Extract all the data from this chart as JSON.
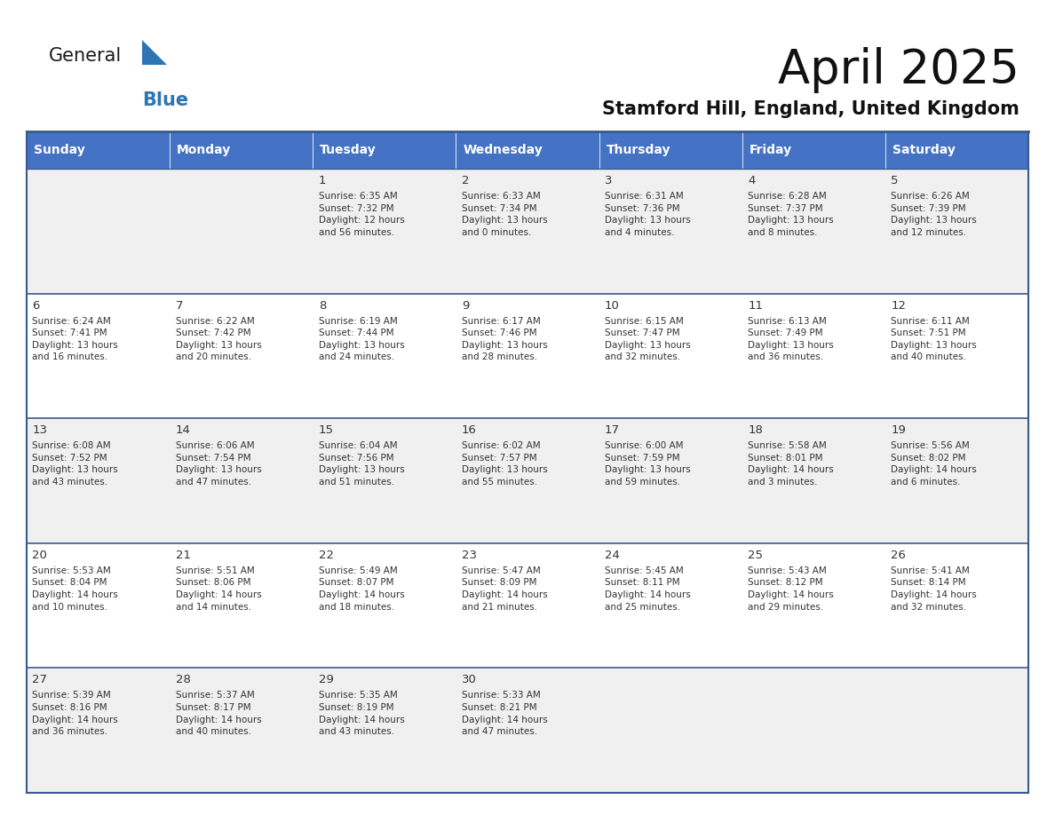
{
  "title": "April 2025",
  "subtitle": "Stamford Hill, England, United Kingdom",
  "header_color": "#4472C4",
  "header_text_color": "#FFFFFF",
  "row_bg_white": "#FFFFFF",
  "row_bg_gray": "#F0F0F0",
  "border_color": "#3a5a8c",
  "text_color": "#333333",
  "logo_black": "#1a1a1a",
  "logo_blue": "#2E75B6",
  "triangle_blue": "#2E75B6",
  "days_of_week": [
    "Sunday",
    "Monday",
    "Tuesday",
    "Wednesday",
    "Thursday",
    "Friday",
    "Saturday"
  ],
  "row_colors": [
    "gray",
    "white",
    "gray",
    "white",
    "gray"
  ],
  "calendar_data": [
    [
      {
        "day": "",
        "info": ""
      },
      {
        "day": "",
        "info": ""
      },
      {
        "day": "1",
        "info": "Sunrise: 6:35 AM\nSunset: 7:32 PM\nDaylight: 12 hours\nand 56 minutes."
      },
      {
        "day": "2",
        "info": "Sunrise: 6:33 AM\nSunset: 7:34 PM\nDaylight: 13 hours\nand 0 minutes."
      },
      {
        "day": "3",
        "info": "Sunrise: 6:31 AM\nSunset: 7:36 PM\nDaylight: 13 hours\nand 4 minutes."
      },
      {
        "day": "4",
        "info": "Sunrise: 6:28 AM\nSunset: 7:37 PM\nDaylight: 13 hours\nand 8 minutes."
      },
      {
        "day": "5",
        "info": "Sunrise: 6:26 AM\nSunset: 7:39 PM\nDaylight: 13 hours\nand 12 minutes."
      }
    ],
    [
      {
        "day": "6",
        "info": "Sunrise: 6:24 AM\nSunset: 7:41 PM\nDaylight: 13 hours\nand 16 minutes."
      },
      {
        "day": "7",
        "info": "Sunrise: 6:22 AM\nSunset: 7:42 PM\nDaylight: 13 hours\nand 20 minutes."
      },
      {
        "day": "8",
        "info": "Sunrise: 6:19 AM\nSunset: 7:44 PM\nDaylight: 13 hours\nand 24 minutes."
      },
      {
        "day": "9",
        "info": "Sunrise: 6:17 AM\nSunset: 7:46 PM\nDaylight: 13 hours\nand 28 minutes."
      },
      {
        "day": "10",
        "info": "Sunrise: 6:15 AM\nSunset: 7:47 PM\nDaylight: 13 hours\nand 32 minutes."
      },
      {
        "day": "11",
        "info": "Sunrise: 6:13 AM\nSunset: 7:49 PM\nDaylight: 13 hours\nand 36 minutes."
      },
      {
        "day": "12",
        "info": "Sunrise: 6:11 AM\nSunset: 7:51 PM\nDaylight: 13 hours\nand 40 minutes."
      }
    ],
    [
      {
        "day": "13",
        "info": "Sunrise: 6:08 AM\nSunset: 7:52 PM\nDaylight: 13 hours\nand 43 minutes."
      },
      {
        "day": "14",
        "info": "Sunrise: 6:06 AM\nSunset: 7:54 PM\nDaylight: 13 hours\nand 47 minutes."
      },
      {
        "day": "15",
        "info": "Sunrise: 6:04 AM\nSunset: 7:56 PM\nDaylight: 13 hours\nand 51 minutes."
      },
      {
        "day": "16",
        "info": "Sunrise: 6:02 AM\nSunset: 7:57 PM\nDaylight: 13 hours\nand 55 minutes."
      },
      {
        "day": "17",
        "info": "Sunrise: 6:00 AM\nSunset: 7:59 PM\nDaylight: 13 hours\nand 59 minutes."
      },
      {
        "day": "18",
        "info": "Sunrise: 5:58 AM\nSunset: 8:01 PM\nDaylight: 14 hours\nand 3 minutes."
      },
      {
        "day": "19",
        "info": "Sunrise: 5:56 AM\nSunset: 8:02 PM\nDaylight: 14 hours\nand 6 minutes."
      }
    ],
    [
      {
        "day": "20",
        "info": "Sunrise: 5:53 AM\nSunset: 8:04 PM\nDaylight: 14 hours\nand 10 minutes."
      },
      {
        "day": "21",
        "info": "Sunrise: 5:51 AM\nSunset: 8:06 PM\nDaylight: 14 hours\nand 14 minutes."
      },
      {
        "day": "22",
        "info": "Sunrise: 5:49 AM\nSunset: 8:07 PM\nDaylight: 14 hours\nand 18 minutes."
      },
      {
        "day": "23",
        "info": "Sunrise: 5:47 AM\nSunset: 8:09 PM\nDaylight: 14 hours\nand 21 minutes."
      },
      {
        "day": "24",
        "info": "Sunrise: 5:45 AM\nSunset: 8:11 PM\nDaylight: 14 hours\nand 25 minutes."
      },
      {
        "day": "25",
        "info": "Sunrise: 5:43 AM\nSunset: 8:12 PM\nDaylight: 14 hours\nand 29 minutes."
      },
      {
        "day": "26",
        "info": "Sunrise: 5:41 AM\nSunset: 8:14 PM\nDaylight: 14 hours\nand 32 minutes."
      }
    ],
    [
      {
        "day": "27",
        "info": "Sunrise: 5:39 AM\nSunset: 8:16 PM\nDaylight: 14 hours\nand 36 minutes."
      },
      {
        "day": "28",
        "info": "Sunrise: 5:37 AM\nSunset: 8:17 PM\nDaylight: 14 hours\nand 40 minutes."
      },
      {
        "day": "29",
        "info": "Sunrise: 5:35 AM\nSunset: 8:19 PM\nDaylight: 14 hours\nand 43 minutes."
      },
      {
        "day": "30",
        "info": "Sunrise: 5:33 AM\nSunset: 8:21 PM\nDaylight: 14 hours\nand 47 minutes."
      },
      {
        "day": "",
        "info": ""
      },
      {
        "day": "",
        "info": ""
      },
      {
        "day": "",
        "info": ""
      }
    ]
  ]
}
